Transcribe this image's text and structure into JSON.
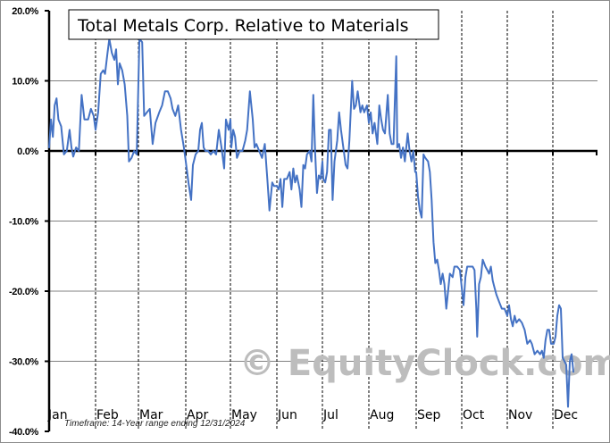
{
  "chart_data": {
    "type": "line",
    "title": "Total Metals Corp. Relative to Materials",
    "xlabel": "",
    "ylabel": "",
    "ylim": [
      -40,
      20
    ],
    "y_ticks": [
      "20.0%",
      "10.0%",
      "0.0%",
      "-10.0%",
      "-20.0%",
      "-30.0%",
      "-40.0%"
    ],
    "y_tick_values": [
      20,
      10,
      0,
      -10,
      -20,
      -30,
      -40
    ],
    "x_tick_labels": [
      "Jan",
      "Feb",
      "Mar",
      "Apr",
      "May",
      "Jun",
      "Jul",
      "Aug",
      "Sep",
      "Oct",
      "Nov",
      "Dec"
    ],
    "grid": {
      "horizontal": true,
      "vertical_dashed_month_dividers": true
    },
    "legend": null,
    "line_color": "#4472c4",
    "footnote": "Timeframe:  14-Year range ending 12/31/2024",
    "watermark": "© EquityClock.com",
    "series": [
      {
        "name": "Total Metals Corp. Relative to Materials (seasonal %)",
        "points_month_pct": [
          [
            0.0,
            0.5
          ],
          [
            0.04,
            4.5
          ],
          [
            0.08,
            2.0
          ],
          [
            0.12,
            6.5
          ],
          [
            0.16,
            7.5
          ],
          [
            0.2,
            4.5
          ],
          [
            0.26,
            3.5
          ],
          [
            0.32,
            -0.5
          ],
          [
            0.38,
            0.0
          ],
          [
            0.44,
            3.0
          ],
          [
            0.48,
            0.5
          ],
          [
            0.52,
            -0.8
          ],
          [
            0.58,
            0.5
          ],
          [
            0.64,
            0.0
          ],
          [
            0.7,
            8.0
          ],
          [
            0.76,
            4.5
          ],
          [
            0.84,
            4.5
          ],
          [
            0.9,
            6.0
          ],
          [
            0.96,
            5.0
          ],
          [
            1.0,
            3.0
          ],
          [
            1.06,
            5.5
          ],
          [
            1.12,
            11.0
          ],
          [
            1.18,
            11.5
          ],
          [
            1.22,
            11.0
          ],
          [
            1.28,
            14.0
          ],
          [
            1.32,
            16.0
          ],
          [
            1.38,
            14.0
          ],
          [
            1.44,
            13.0
          ],
          [
            1.48,
            14.5
          ],
          [
            1.52,
            9.5
          ],
          [
            1.56,
            12.5
          ],
          [
            1.62,
            11.5
          ],
          [
            1.68,
            9.5
          ],
          [
            1.74,
            5.0
          ],
          [
            1.78,
            -1.5
          ],
          [
            1.84,
            -1.0
          ],
          [
            1.9,
            0.0
          ],
          [
            1.96,
            -0.5
          ],
          [
            2.02,
            16.0
          ],
          [
            2.08,
            15.5
          ],
          [
            2.12,
            5.0
          ],
          [
            2.18,
            5.5
          ],
          [
            2.24,
            6.0
          ],
          [
            2.3,
            1.0
          ],
          [
            2.36,
            4.0
          ],
          [
            2.44,
            5.5
          ],
          [
            2.5,
            6.5
          ],
          [
            2.56,
            8.5
          ],
          [
            2.62,
            8.5
          ],
          [
            2.68,
            7.5
          ],
          [
            2.72,
            6.0
          ],
          [
            2.78,
            5.0
          ],
          [
            2.84,
            6.5
          ],
          [
            2.9,
            3.0
          ],
          [
            2.96,
            0.5
          ],
          [
            3.0,
            -1.5
          ],
          [
            3.06,
            -4.5
          ],
          [
            3.12,
            -7.0
          ],
          [
            3.16,
            -2.0
          ],
          [
            3.22,
            -0.5
          ],
          [
            3.28,
            0.0
          ],
          [
            3.32,
            3.0
          ],
          [
            3.36,
            4.0
          ],
          [
            3.4,
            0.5
          ],
          [
            3.44,
            0.0
          ],
          [
            3.5,
            0.0
          ],
          [
            3.56,
            -0.5
          ],
          [
            3.62,
            0.0
          ],
          [
            3.68,
            -0.5
          ],
          [
            3.74,
            3.0
          ],
          [
            3.8,
            0.5
          ],
          [
            3.86,
            -2.5
          ],
          [
            3.9,
            4.5
          ],
          [
            3.96,
            3.0
          ],
          [
            4.0,
            4.5
          ],
          [
            4.02,
            0.5
          ],
          [
            4.06,
            3.0
          ],
          [
            4.1,
            2.0
          ],
          [
            4.14,
            -1.0
          ],
          [
            4.2,
            0.0
          ],
          [
            4.26,
            0.0
          ],
          [
            4.32,
            1.5
          ],
          [
            4.36,
            3.0
          ],
          [
            4.42,
            8.5
          ],
          [
            4.48,
            4.5
          ],
          [
            4.52,
            0.5
          ],
          [
            4.56,
            1.0
          ],
          [
            4.62,
            0.0
          ],
          [
            4.68,
            -1.0
          ],
          [
            4.74,
            1.0
          ],
          [
            4.8,
            -4.5
          ],
          [
            4.84,
            -8.5
          ],
          [
            4.9,
            -4.5
          ],
          [
            4.94,
            -5.0
          ],
          [
            5.0,
            -5.0
          ],
          [
            5.04,
            -5.5
          ],
          [
            5.08,
            -4.0
          ],
          [
            5.12,
            -8.0
          ],
          [
            5.16,
            -4.0
          ],
          [
            5.22,
            -4.0
          ],
          [
            5.28,
            -3.0
          ],
          [
            5.32,
            -5.5
          ],
          [
            5.36,
            -2.5
          ],
          [
            5.4,
            -4.5
          ],
          [
            5.44,
            -3.5
          ],
          [
            5.5,
            -5.5
          ],
          [
            5.54,
            -8.0
          ],
          [
            5.58,
            -2.0
          ],
          [
            5.62,
            -2.5
          ],
          [
            5.66,
            -0.5
          ],
          [
            5.72,
            0.0
          ],
          [
            5.76,
            -1.5
          ],
          [
            5.8,
            8.0
          ],
          [
            5.84,
            0.0
          ],
          [
            5.88,
            -6.0
          ],
          [
            5.92,
            -3.5
          ],
          [
            5.96,
            -4.0
          ],
          [
            6.0,
            -1.5
          ],
          [
            6.02,
            -4.0
          ],
          [
            6.06,
            -4.5
          ],
          [
            6.1,
            -3.0
          ],
          [
            6.14,
            3.0
          ],
          [
            6.18,
            3.0
          ],
          [
            6.22,
            -7.0
          ],
          [
            6.26,
            -1.5
          ],
          [
            6.32,
            1.5
          ],
          [
            6.36,
            5.5
          ],
          [
            6.4,
            3.0
          ],
          [
            6.44,
            1.0
          ],
          [
            6.5,
            -2.0
          ],
          [
            6.54,
            -2.5
          ],
          [
            6.58,
            1.5
          ],
          [
            6.64,
            10.0
          ],
          [
            6.68,
            6.0
          ],
          [
            6.72,
            6.5
          ],
          [
            6.76,
            8.5
          ],
          [
            6.82,
            5.5
          ],
          [
            6.86,
            6.5
          ],
          [
            6.9,
            5.5
          ],
          [
            6.96,
            6.5
          ],
          [
            7.0,
            4.0
          ],
          [
            7.04,
            5.5
          ],
          [
            7.08,
            2.5
          ],
          [
            7.12,
            4.0
          ],
          [
            7.18,
            1.0
          ],
          [
            7.22,
            6.5
          ],
          [
            7.26,
            4.5
          ],
          [
            7.3,
            3.0
          ],
          [
            7.34,
            2.5
          ],
          [
            7.4,
            8.0
          ],
          [
            7.44,
            2.5
          ],
          [
            7.48,
            1.0
          ],
          [
            7.52,
            1.0
          ],
          [
            7.56,
            9.5
          ],
          [
            7.58,
            13.5
          ],
          [
            7.6,
            0.5
          ],
          [
            7.64,
            1.0
          ],
          [
            7.68,
            -1.0
          ],
          [
            7.72,
            0.5
          ],
          [
            7.76,
            -1.5
          ],
          [
            7.82,
            2.5
          ],
          [
            7.86,
            0.0
          ],
          [
            7.9,
            -1.5
          ],
          [
            7.94,
            0.0
          ],
          [
            7.98,
            -3.0
          ],
          [
            8.0,
            -3.0
          ],
          [
            8.04,
            -6.5
          ],
          [
            8.08,
            -8.5
          ],
          [
            8.12,
            -9.5
          ],
          [
            8.16,
            -0.5
          ],
          [
            8.2,
            -1.0
          ],
          [
            8.26,
            -1.5
          ],
          [
            8.3,
            -3.0
          ],
          [
            8.34,
            -7.0
          ],
          [
            8.38,
            -13.0
          ],
          [
            8.42,
            -16.0
          ],
          [
            8.46,
            -15.5
          ],
          [
            8.5,
            -17.0
          ],
          [
            8.54,
            -19.0
          ],
          [
            8.58,
            -17.5
          ],
          [
            8.62,
            -19.0
          ],
          [
            8.66,
            -22.5
          ],
          [
            8.7,
            -20.0
          ],
          [
            8.74,
            -17.5
          ],
          [
            8.8,
            -18.0
          ],
          [
            8.84,
            -16.5
          ],
          [
            8.9,
            -16.5
          ],
          [
            8.96,
            -17.0
          ],
          [
            9.0,
            -19.5
          ],
          [
            9.04,
            -22.0
          ],
          [
            9.08,
            -18.0
          ],
          [
            9.12,
            -16.5
          ],
          [
            9.18,
            -16.5
          ],
          [
            9.24,
            -16.5
          ],
          [
            9.28,
            -17.0
          ],
          [
            9.32,
            -22.5
          ],
          [
            9.34,
            -26.5
          ],
          [
            9.38,
            -19.0
          ],
          [
            9.42,
            -18.0
          ],
          [
            9.46,
            -15.5
          ],
          [
            9.52,
            -16.5
          ],
          [
            9.56,
            -17.0
          ],
          [
            9.6,
            -17.5
          ],
          [
            9.64,
            -16.5
          ],
          [
            9.68,
            -18.5
          ],
          [
            9.72,
            -19.5
          ],
          [
            9.76,
            -20.5
          ],
          [
            9.82,
            -21.5
          ],
          [
            9.88,
            -22.5
          ],
          [
            9.94,
            -22.5
          ],
          [
            10.0,
            -23.5
          ],
          [
            10.04,
            -22.0
          ],
          [
            10.08,
            -24.0
          ],
          [
            10.12,
            -25.0
          ],
          [
            10.16,
            -23.5
          ],
          [
            10.2,
            -24.5
          ],
          [
            10.26,
            -24.0
          ],
          [
            10.32,
            -24.5
          ],
          [
            10.38,
            -25.5
          ],
          [
            10.44,
            -27.5
          ],
          [
            10.5,
            -27.0
          ],
          [
            10.54,
            -27.5
          ],
          [
            10.6,
            -29.0
          ],
          [
            10.66,
            -28.5
          ],
          [
            10.72,
            -29.0
          ],
          [
            10.76,
            -28.5
          ],
          [
            10.8,
            -29.5
          ],
          [
            10.84,
            -27.0
          ],
          [
            10.88,
            -25.5
          ],
          [
            10.92,
            -25.5
          ],
          [
            10.96,
            -27.5
          ],
          [
            11.02,
            -27.5
          ],
          [
            11.06,
            -26.5
          ],
          [
            11.1,
            -23.5
          ],
          [
            11.14,
            -22.0
          ],
          [
            11.18,
            -22.5
          ],
          [
            11.22,
            -29.5
          ],
          [
            11.26,
            -30.0
          ],
          [
            11.3,
            -30.5
          ],
          [
            11.34,
            -36.5
          ],
          [
            11.38,
            -30.0
          ],
          [
            11.42,
            -29.0
          ],
          [
            11.46,
            -31.5
          ]
        ]
      }
    ]
  },
  "axis": {
    "y_labels": [
      "20.0%",
      "10.0%",
      "0.0%",
      "-10.0%",
      "-20.0%",
      "-30.0%",
      "-40.0%"
    ],
    "months": [
      "Jan",
      "Feb",
      "Mar",
      "Apr",
      "May",
      "Jun",
      "Jul",
      "Aug",
      "Sep",
      "Oct",
      "Nov",
      "Dec"
    ]
  },
  "title": "Total Metals Corp. Relative to Materials",
  "footnote": "Timeframe:  14-Year range ending 12/31/2024",
  "watermark": "© EquityClock.com",
  "colors": {
    "line": "#4472c4",
    "gridline": "#808080",
    "axis": "#000000",
    "watermark": "#bdbdbd",
    "frame": "#8c8c8c"
  }
}
